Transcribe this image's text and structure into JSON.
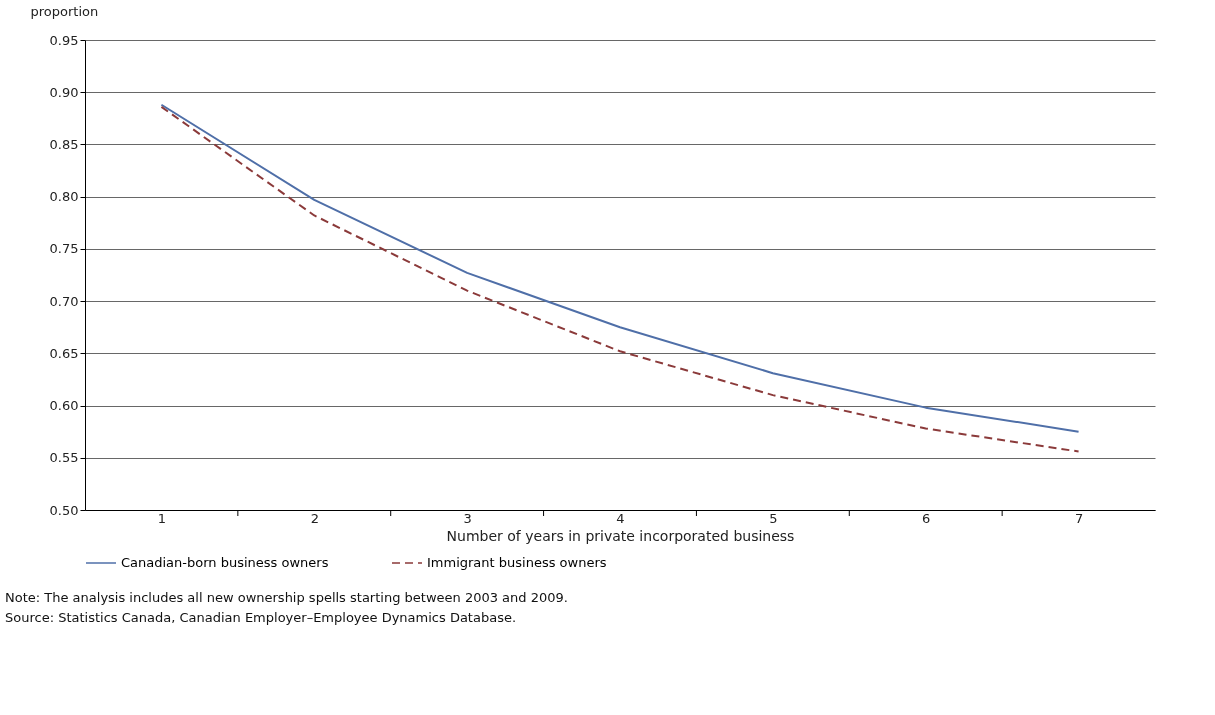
{
  "chart_data": {
    "type": "line",
    "ylabel": "proportion",
    "xlabel": "Number of years in private incorporated business",
    "categories": [
      "1",
      "2",
      "3",
      "4",
      "5",
      "6",
      "7"
    ],
    "series": [
      {
        "name": "Canadian-born business owners",
        "color": "#4f6fa8",
        "line_style": "solid",
        "values": [
          0.888,
          0.797,
          0.727,
          0.675,
          0.631,
          0.598,
          0.575
        ]
      },
      {
        "name": "Immigrant business owners",
        "color": "#8b3a3a",
        "line_style": "dashed",
        "values": [
          0.886,
          0.782,
          0.71,
          0.652,
          0.61,
          0.578,
          0.556
        ]
      }
    ],
    "ylim": [
      0.5,
      0.95
    ],
    "yticks": [
      {
        "value": 0.5,
        "label": "0.50"
      },
      {
        "value": 0.55,
        "label": "0.55"
      },
      {
        "value": 0.6,
        "label": "0.60"
      },
      {
        "value": 0.65,
        "label": "0.65"
      },
      {
        "value": 0.7,
        "label": "0.70"
      },
      {
        "value": 0.75,
        "label": "0.75"
      },
      {
        "value": 0.8,
        "label": "0.80"
      },
      {
        "value": 0.85,
        "label": "0.85"
      },
      {
        "value": 0.9,
        "label": "0.90"
      },
      {
        "value": 0.95,
        "label": "0.95"
      }
    ],
    "grid": "y",
    "legend": "bottom",
    "marker": "none",
    "annotations": [
      "Note: The analysis includes all new ownership spells starting between 2003 and 2009.",
      "Source: Statistics Canada, Canadian Employer–Employee Dynamics Database."
    ]
  }
}
